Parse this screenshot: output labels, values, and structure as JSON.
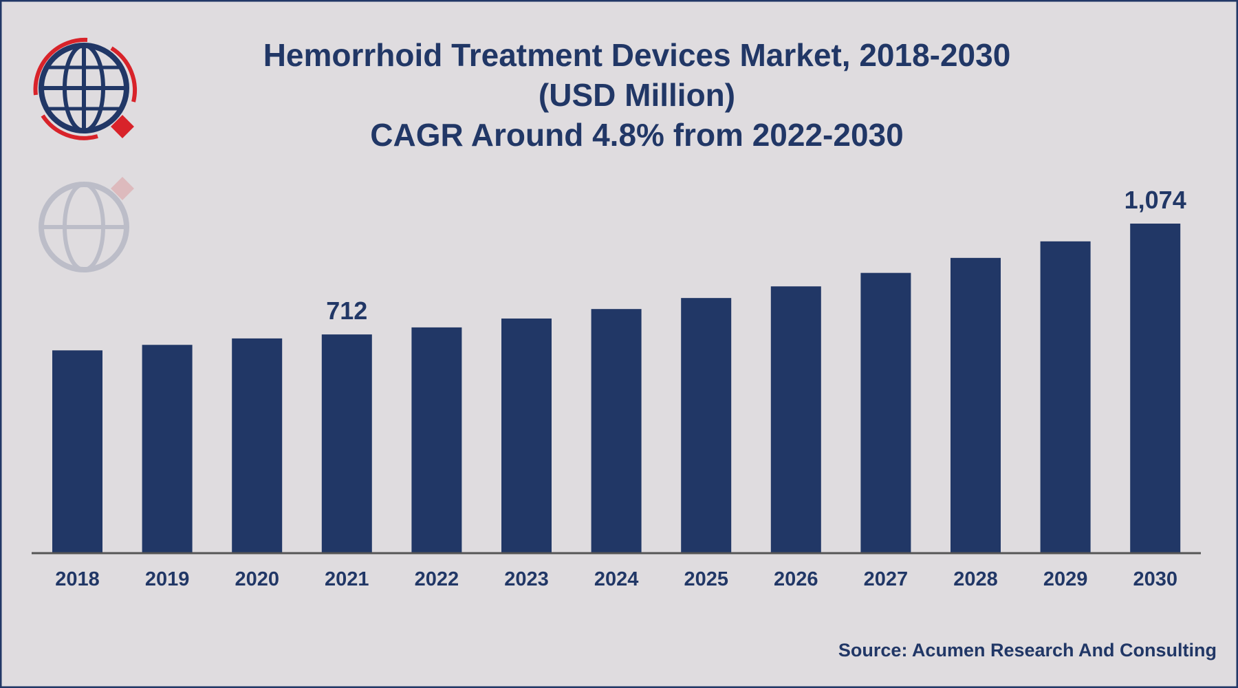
{
  "chart_data": {
    "type": "bar",
    "title": [
      "Hemorrhoid Treatment Devices Market, 2018-2030",
      "(USD Million)",
      "CAGR Around 4.8% from 2022-2030"
    ],
    "xlabel": "",
    "ylabel": "",
    "categories": [
      "2018",
      "2019",
      "2020",
      "2021",
      "2022",
      "2023",
      "2024",
      "2025",
      "2026",
      "2027",
      "2028",
      "2029",
      "2030"
    ],
    "values": [
      660,
      678,
      699,
      712,
      735,
      764,
      795,
      831,
      869,
      913,
      962,
      1016,
      1074
    ],
    "data_labels": {
      "2021": "712",
      "2030": "1,074"
    },
    "ylim": [
      0,
      1150
    ],
    "grid": false,
    "legend": "none",
    "bar_color": "#213766",
    "source": "Source: Acumen Research And Consulting"
  },
  "colors": {
    "background": "#dfdcdf",
    "text": "#213766",
    "logo_red": "#d8232a"
  }
}
